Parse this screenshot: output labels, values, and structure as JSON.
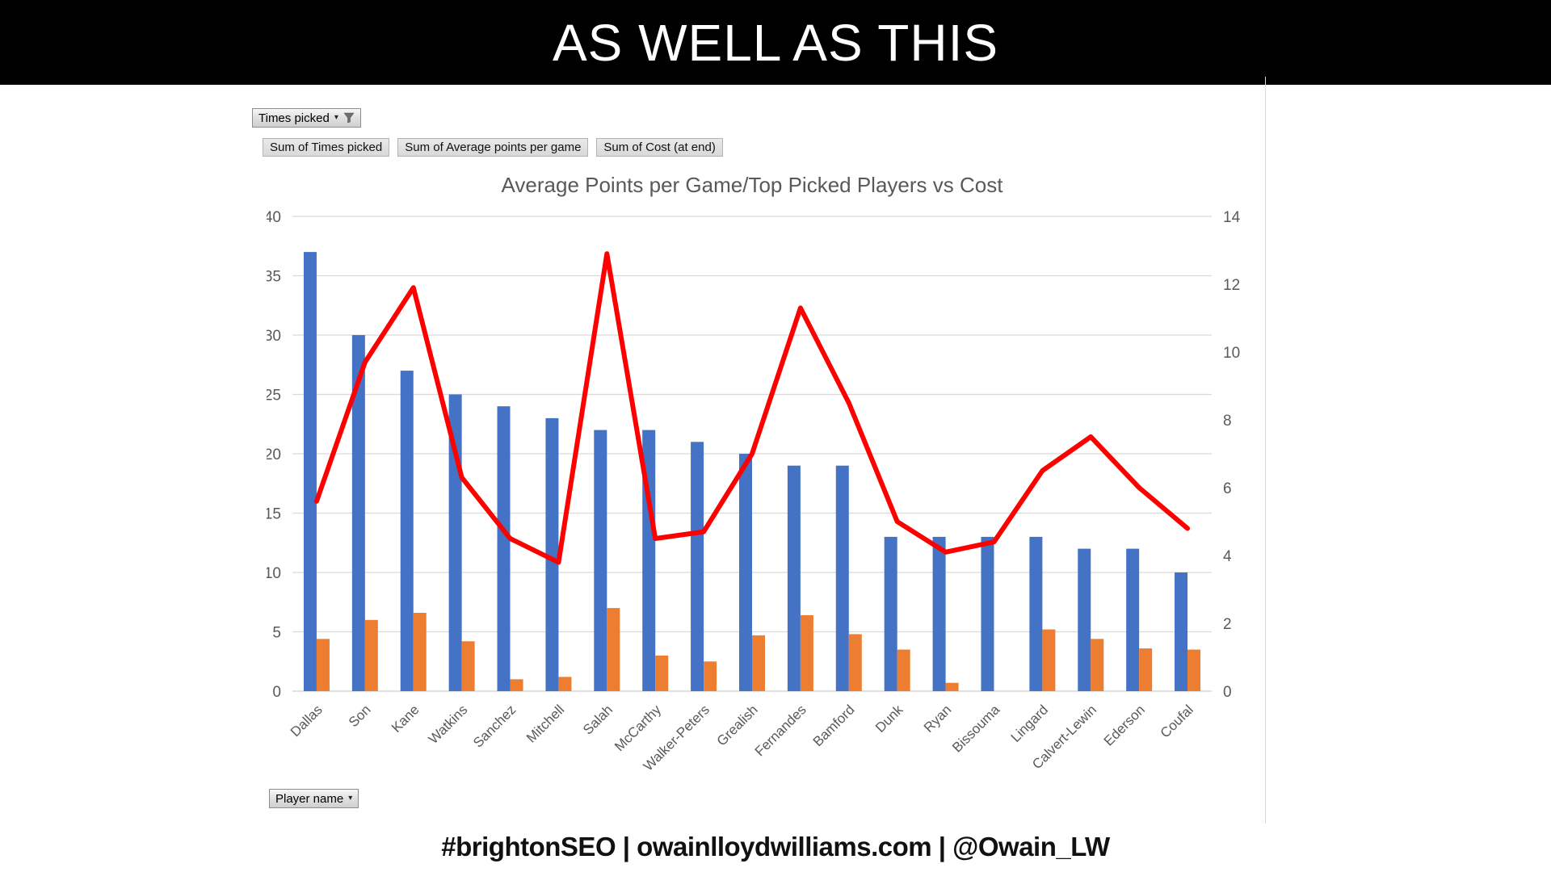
{
  "banner": {
    "title": "AS WELL AS THIS"
  },
  "pivot": {
    "filter_button": {
      "label": "Times picked",
      "icons": [
        "dropdown-caret",
        "filter-funnel"
      ]
    },
    "field_buttons": [
      {
        "label": "Sum of Times picked"
      },
      {
        "label": "Sum of Average points per game"
      },
      {
        "label": "Sum of Cost (at end)"
      }
    ],
    "axis_field_button": {
      "label": "Player name",
      "icons": [
        "dropdown-caret"
      ]
    }
  },
  "chart_data": {
    "type": "bar",
    "subtype": "combo-bar-line-dual-axis",
    "title": "Average Points per Game/Top Picked Players vs Cost",
    "xlabel": "Player name",
    "ylabel": "",
    "grid": true,
    "legend_position": "none",
    "categories": [
      "Dallas",
      "Son",
      "Kane",
      "Watkins",
      "Sanchez",
      "Mitchell",
      "Salah",
      "McCarthy",
      "Walker-Peters",
      "Grealish",
      "Fernandes",
      "Bamford",
      "Dunk",
      "Ryan",
      "Bissouma",
      "Lingard",
      "Calvert-Lewin",
      "Ederson",
      "Coufal"
    ],
    "series": [
      {
        "name": "Sum of Times picked",
        "type": "bar",
        "axis": "left",
        "color": "#4472C4",
        "values": [
          37,
          30,
          27,
          25,
          24,
          23,
          22,
          22,
          21,
          20,
          19,
          19,
          13,
          13,
          13,
          13,
          12,
          12,
          10
        ]
      },
      {
        "name": "Sum of Average points per game",
        "type": "bar",
        "axis": "left",
        "color": "#ED7D31",
        "values": [
          4.4,
          6.0,
          6.6,
          4.2,
          1.0,
          1.2,
          7.0,
          3.0,
          2.5,
          4.7,
          6.4,
          4.8,
          3.5,
          0.7,
          0,
          5.2,
          4.4,
          3.6,
          3.5
        ]
      },
      {
        "name": "Sum of Cost (at end)",
        "type": "line",
        "axis": "right",
        "color": "#FF0000",
        "values": [
          5.6,
          9.7,
          11.9,
          6.3,
          4.5,
          3.8,
          12.9,
          4.5,
          4.7,
          7.0,
          11.3,
          8.5,
          5.0,
          4.1,
          4.4,
          6.5,
          7.5,
          6.0,
          4.8
        ]
      }
    ],
    "left_axis": {
      "min": 0,
      "max": 40,
      "step": 5,
      "ticks": [
        40,
        35,
        30,
        25,
        20,
        15,
        10,
        5,
        0
      ]
    },
    "right_axis": {
      "min": 0,
      "max": 14,
      "step": 2,
      "ticks": [
        14,
        12,
        10,
        8,
        6,
        4,
        2,
        0
      ]
    },
    "tick_color": "#595959",
    "gridline_color": "#d9d9d9"
  },
  "footer": {
    "text": "#brightonSEO | owainlloydwilliams.com | @Owain_LW"
  }
}
